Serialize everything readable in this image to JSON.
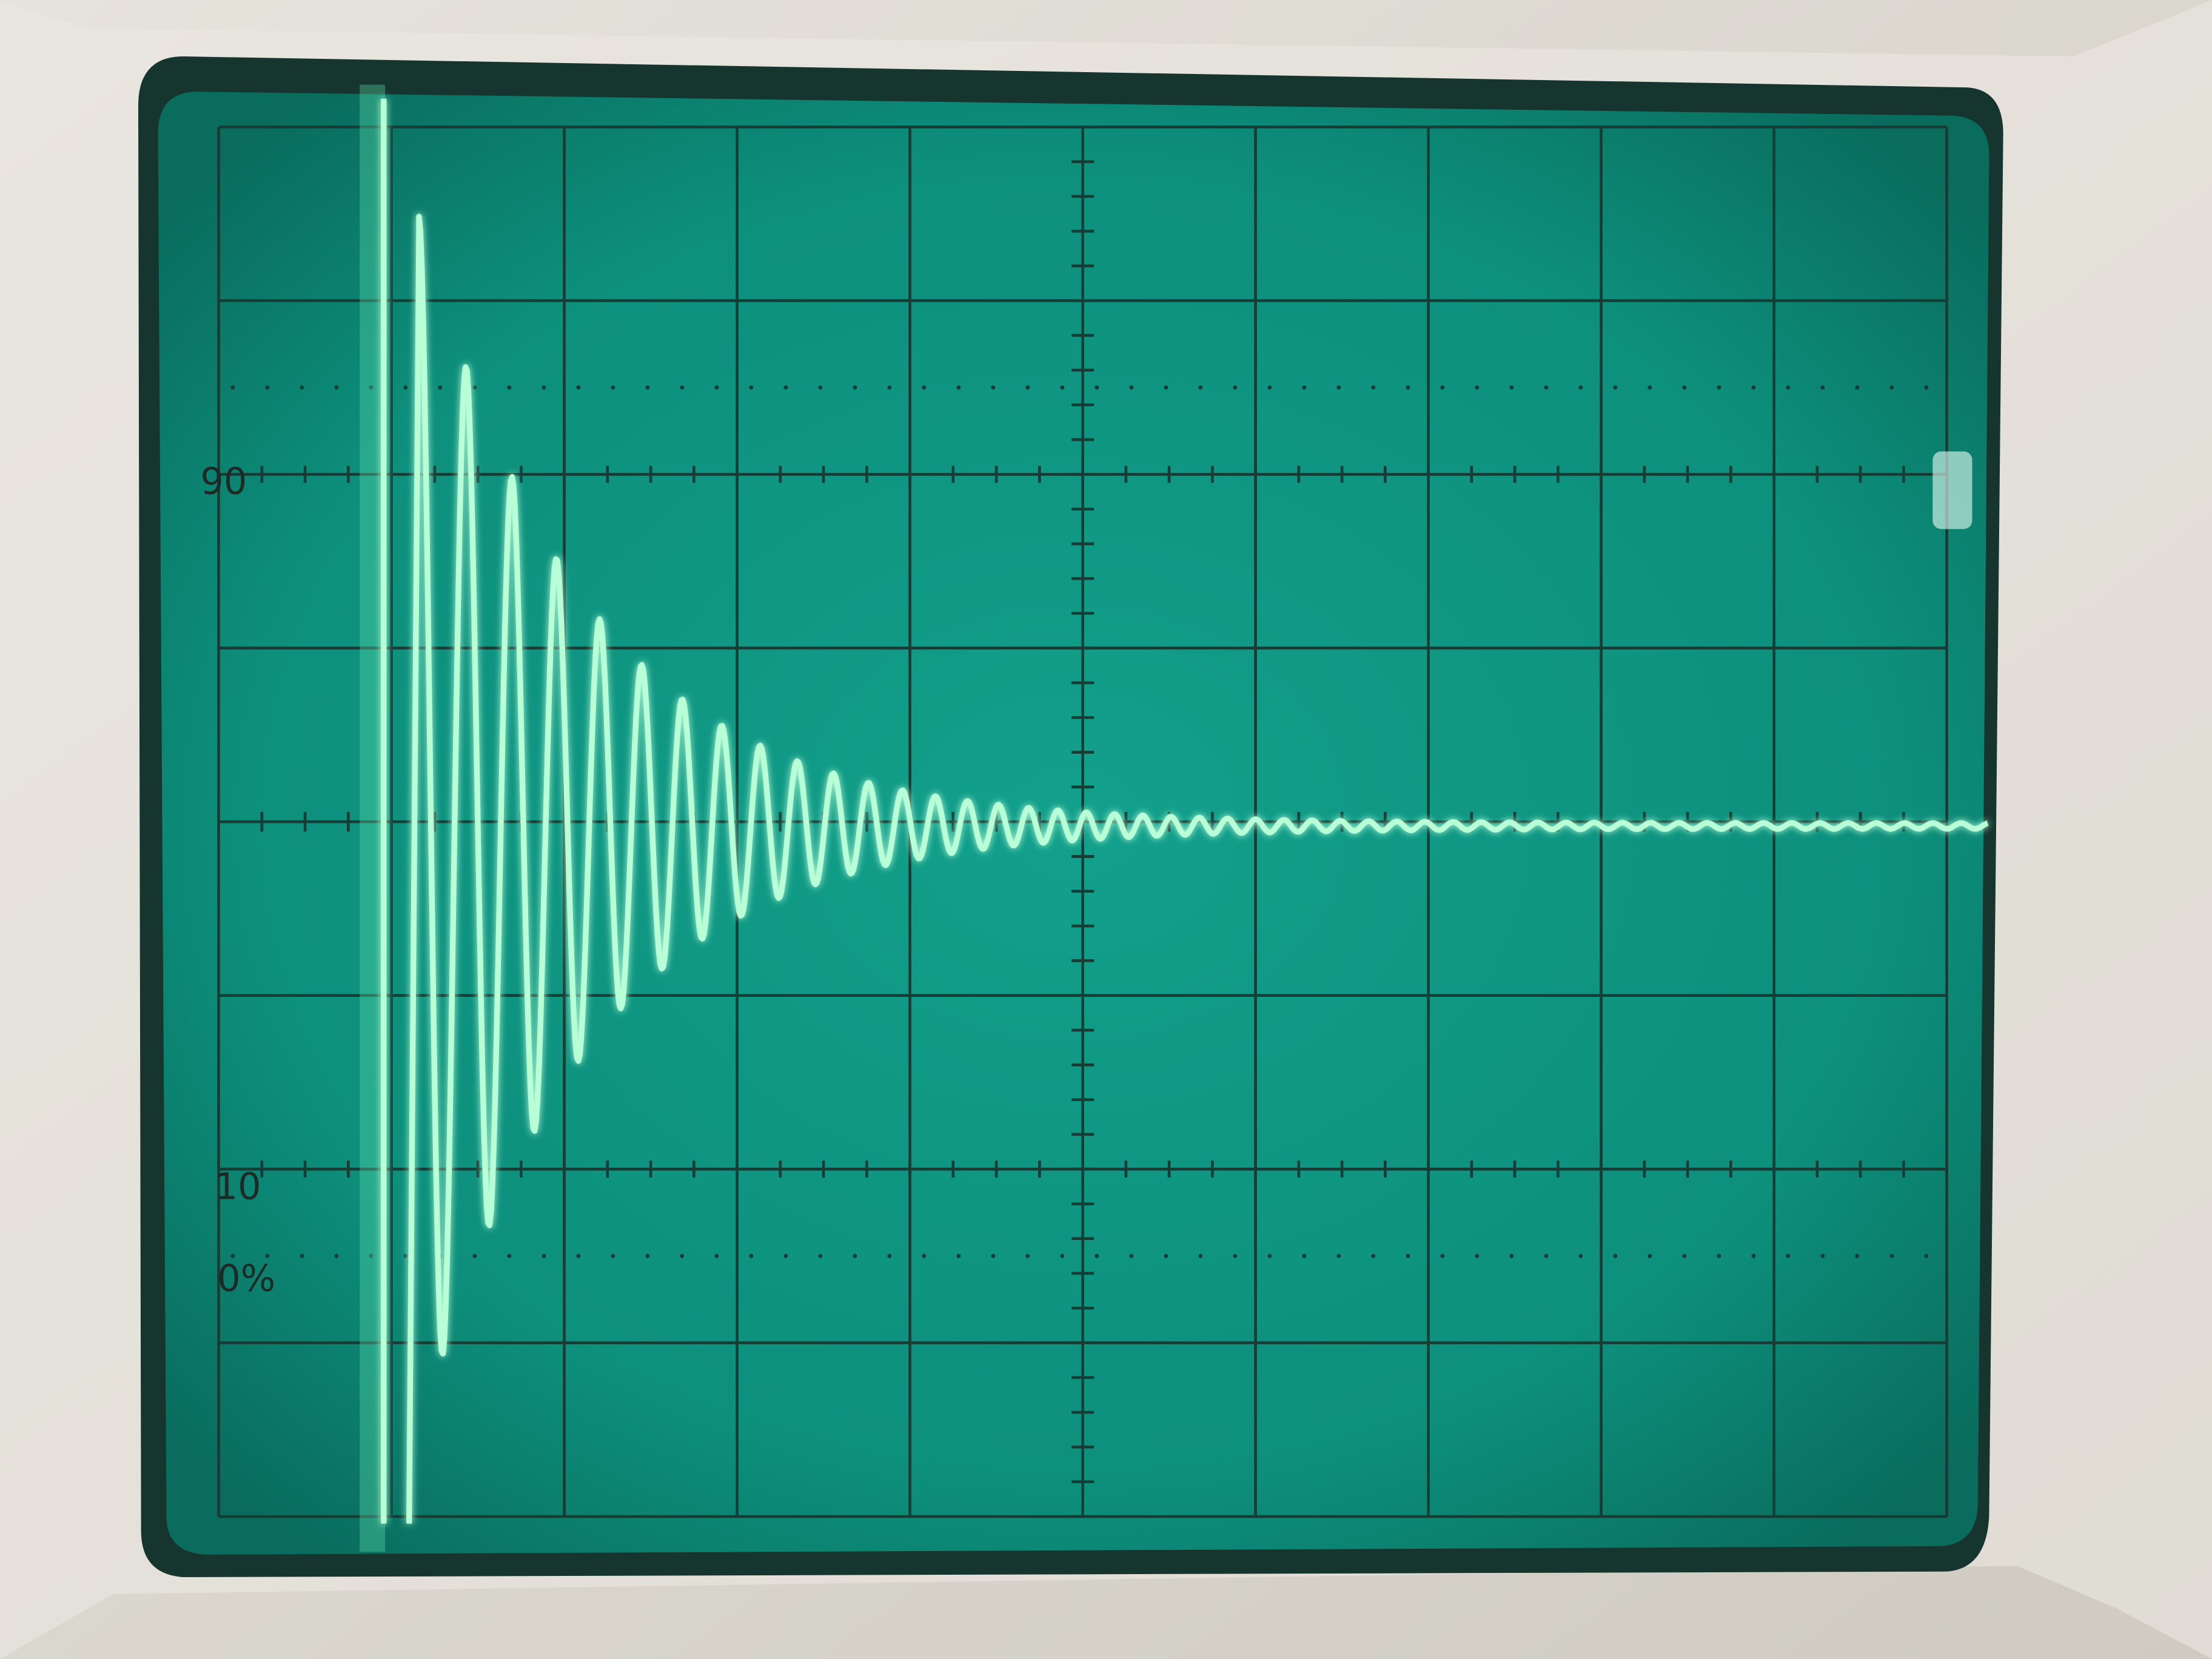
{
  "graticule": {
    "labels": [
      "90",
      "10",
      "0%"
    ]
  }
}
